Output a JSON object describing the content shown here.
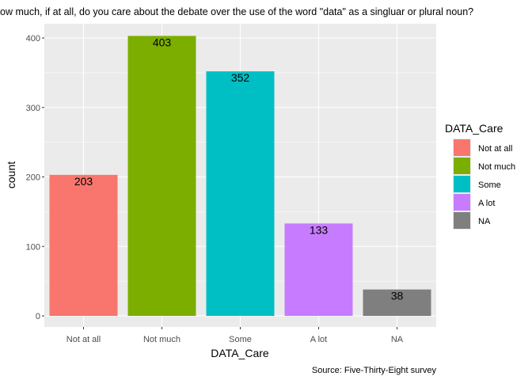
{
  "chart_data": {
    "type": "bar",
    "title": "ow much, if at all, do you care about the debate over the use of the word \"data\" as a singluar or plural noun?",
    "xlabel": "DATA_Care",
    "ylabel": "count",
    "caption": "Source: Five-Thirty-Eight survey",
    "categories": [
      "Not at all",
      "Not much",
      "Some",
      "A lot",
      "NA"
    ],
    "values": [
      203,
      403,
      352,
      133,
      38
    ],
    "yticks": [
      0,
      100,
      200,
      300,
      400
    ],
    "ylim": [
      0,
      423
    ],
    "grid": true,
    "legend": {
      "title": "DATA_Care",
      "placement": "right",
      "entries": [
        "Not at all",
        "Not much",
        "Some",
        "A lot",
        "NA"
      ]
    },
    "colors": [
      "#F8766D",
      "#7CAE00",
      "#00BFC4",
      "#C77CFF",
      "#7F7F7F"
    ],
    "panel_background": "#EBEBEB",
    "grid_color": "#FFFFFF"
  }
}
